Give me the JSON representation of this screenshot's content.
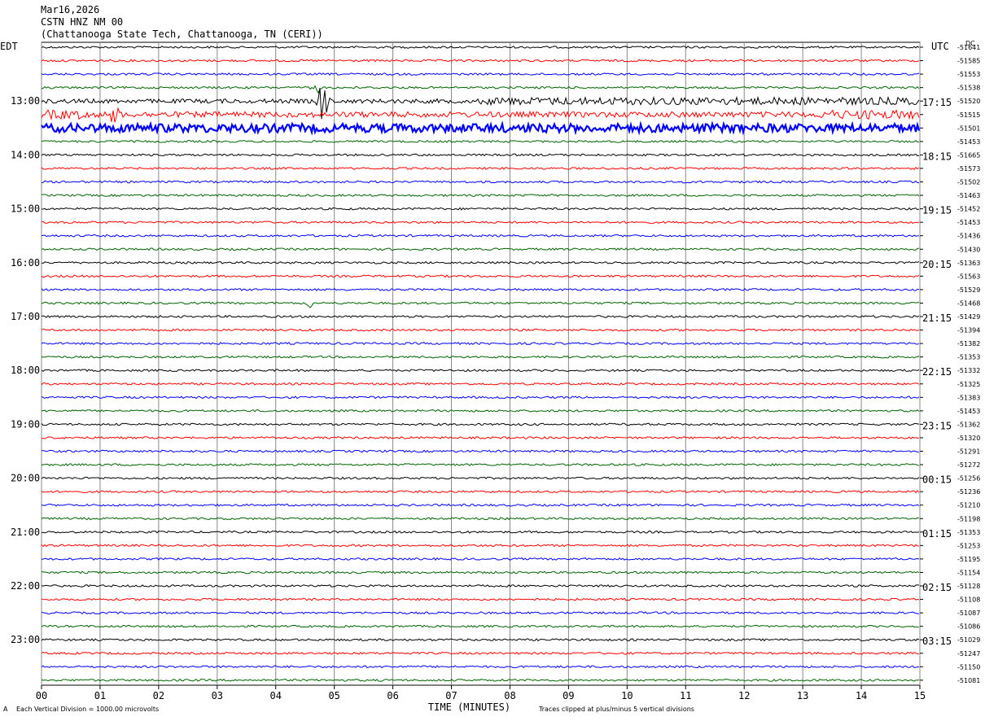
{
  "header": {
    "date": "Mar16,2026",
    "station": "CSTN HNZ NM 00",
    "location": "(Chattanooga State Tech, Chattanooga, TN (CERI))"
  },
  "left_zone": "EDT",
  "right_zone": "UTC",
  "dc_label": "DC",
  "x_axis_label": "TIME (MINUTES)",
  "footer_left": "Each Vertical Division = 1000.00 microvolts",
  "footer_right": "Traces clipped at plus/minus 5 vertical divisions",
  "footer_mark": "A",
  "colors": [
    "#000000",
    "#ff0000",
    "#0000ff",
    "#006400"
  ],
  "chart_data": {
    "type": "line",
    "title": "CSTN HNZ NM 00",
    "xlabel": "TIME (MINUTES)",
    "xlim": [
      0,
      15
    ],
    "x_ticks": [
      "00",
      "01",
      "02",
      "03",
      "04",
      "05",
      "06",
      "07",
      "08",
      "09",
      "10",
      "11",
      "12",
      "13",
      "14",
      "15"
    ],
    "left_hour_labels": [
      "13:00",
      "14:00",
      "15:00",
      "16:00",
      "17:00",
      "18:00",
      "19:00",
      "20:00",
      "21:00",
      "22:00",
      "23:00"
    ],
    "right_hour_labels": [
      "17:15",
      "18:15",
      "19:15",
      "20:15",
      "21:15",
      "22:15",
      "23:15",
      "00:15",
      "01:15",
      "02:15",
      "03:15"
    ],
    "dc_offsets": [
      -51641,
      -51585,
      -51553,
      -51538,
      -51520,
      -51515,
      -51501,
      -51453,
      -51665,
      -51573,
      -51502,
      -51463,
      -51452,
      -51453,
      -51436,
      -51430,
      -51363,
      -51563,
      -51529,
      -51468,
      -51429,
      -51394,
      -51382,
      -51353,
      -51332,
      -51325,
      -51383,
      -51453,
      -51362,
      -51320,
      -51291,
      -51272,
      -51256,
      -51236,
      -51210,
      -51198,
      -51353,
      -51253,
      -51195,
      -51154,
      -51128,
      -51108,
      -51087,
      -51086,
      -51029,
      -51247,
      -51150,
      -51081
    ],
    "trace_count": 48,
    "trace_minutes": 15,
    "events": [
      {
        "trace": 4,
        "minute": 4.8,
        "amplitude": 2.5
      },
      {
        "trace": 3,
        "minute": 4.7,
        "amplitude": 0.6
      },
      {
        "trace": 5,
        "minute": 1.25,
        "amplitude": 1.6
      },
      {
        "trace": 19,
        "minute": 4.6,
        "amplitude": 0.6
      }
    ],
    "noise_levels": {
      "default": 0.22,
      "4": 0.45,
      "5": 0.6,
      "6": 0.9
    }
  }
}
